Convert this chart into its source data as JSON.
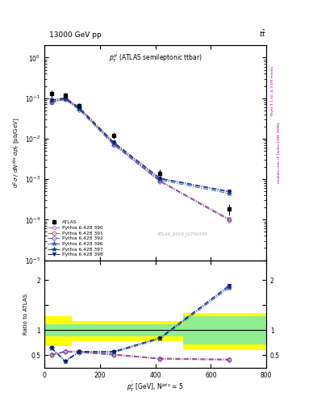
{
  "title_top": "13000 GeV pp",
  "title_right": "tt",
  "plot_title": "$p_T^{t\\bar{t}}$ (ATLAS semileptonic ttbar)",
  "watermark": "ATLAS_2019_I1750330",
  "xlabel": "$p^{\\{tbar\\}}_T$ [GeV], N$^{jets}$ = 5",
  "ylabel_main": "$d^2\\sigma / dN^{obs} dp^{\\{tbar\\}}_T$ [pb/GeV]",
  "ylabel_ratio": "Ratio to ATLAS",
  "atlas_x": [
    25,
    75,
    125,
    250,
    417,
    667
  ],
  "atlas_y": [
    0.13,
    0.12,
    0.065,
    0.012,
    0.0014,
    0.000185
  ],
  "atlas_yerr": [
    0.025,
    0.018,
    0.009,
    0.0022,
    0.00035,
    6e-05
  ],
  "mc_x": [
    25,
    75,
    125,
    250,
    417,
    667
  ],
  "mc_390_y": [
    0.082,
    0.097,
    0.055,
    0.0075,
    0.00092,
    0.000105
  ],
  "mc_391_y": [
    0.08,
    0.095,
    0.054,
    0.0073,
    0.0009,
    0.0001
  ],
  "mc_392_y": [
    0.078,
    0.092,
    0.052,
    0.007,
    0.00087,
    9.6e-05
  ],
  "mc_396_y": [
    0.082,
    0.095,
    0.054,
    0.0075,
    0.00095,
    0.00044
  ],
  "mc_397_y": [
    0.088,
    0.1,
    0.058,
    0.008,
    0.00102,
    0.00048
  ],
  "mc_398_y": [
    0.09,
    0.102,
    0.06,
    0.0082,
    0.00106,
    0.0005
  ],
  "ratio_390": [
    0.52,
    0.58,
    0.58,
    0.52,
    0.44,
    0.42
  ],
  "ratio_391": [
    0.5,
    0.57,
    0.57,
    0.51,
    0.43,
    0.41
  ],
  "ratio_392": [
    0.5,
    0.56,
    0.55,
    0.5,
    0.42,
    0.4
  ],
  "ratio_396": [
    0.64,
    0.37,
    0.55,
    0.55,
    0.82,
    1.85
  ],
  "ratio_397": [
    0.65,
    0.38,
    0.57,
    0.57,
    0.84,
    1.88
  ],
  "ratio_398": [
    0.65,
    0.38,
    0.57,
    0.57,
    0.85,
    1.9
  ],
  "color_390": "#c060a0",
  "color_391": "#b05070",
  "color_392": "#7050b0",
  "color_396": "#3060b0",
  "color_397": "#1040a0",
  "color_398": "#101870",
  "xlim": [
    0,
    800
  ],
  "ylim_main": [
    1e-05,
    2.0
  ],
  "ylim_ratio": [
    0.25,
    2.4
  ]
}
